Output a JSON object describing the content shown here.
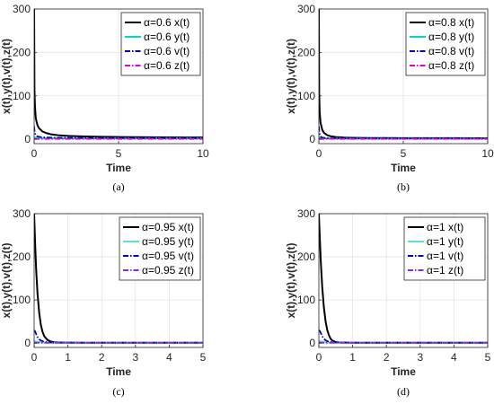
{
  "chart_data": [
    {
      "type": "line",
      "caption": "(a)",
      "xlabel": "Time",
      "ylabel": "x(t),y(t),v(t),z(t)",
      "xlim": [
        0,
        10
      ],
      "ylim": [
        -10,
        300
      ],
      "xticks": [
        0,
        5,
        10
      ],
      "yticks": [
        0,
        100,
        200,
        300
      ],
      "grid": true,
      "legend_position": "top-right",
      "series": [
        {
          "name": "α=0.6 x(t)",
          "color": "#000000",
          "dash": "solid",
          "x": [
            0,
            0.02,
            0.05,
            0.1,
            0.2,
            0.3,
            0.5,
            0.7,
            1,
            1.5,
            2,
            3,
            4,
            5,
            6,
            7,
            8,
            9,
            10
          ],
          "y": [
            300,
            115,
            75,
            48,
            32,
            25,
            18,
            14.5,
            11.5,
            9,
            7.8,
            6.5,
            5.8,
            5.3,
            5,
            4.7,
            4.5,
            4.3,
            4.2
          ]
        },
        {
          "name": "α=0.6 y(t)",
          "color": "#00d5d5",
          "dash": "solid",
          "x": [
            0,
            0.05,
            0.2,
            0.5,
            1,
            2,
            3,
            5,
            7,
            10
          ],
          "y": [
            5,
            4,
            3,
            2.6,
            2.3,
            2.1,
            2,
            2,
            2,
            2
          ]
        },
        {
          "name": "α=0.6 v(t)",
          "color": "#0000c8",
          "dash": "dashdot",
          "x": [
            0,
            0.03,
            0.1,
            0.2,
            0.4,
            0.7,
            1,
            2,
            3,
            5,
            7,
            10
          ],
          "y": [
            30,
            16,
            9,
            6.5,
            5,
            4.2,
            3.8,
            3.3,
            3.1,
            2.9,
            2.8,
            2.7
          ]
        },
        {
          "name": "α=0.6 z(t)",
          "color": "#e000e0",
          "dash": "dashdot",
          "x": [
            0,
            0.1,
            0.5,
            1,
            2,
            5,
            10
          ],
          "y": [
            1,
            0.9,
            0.8,
            0.8,
            0.8,
            0.8,
            0.8
          ]
        }
      ]
    },
    {
      "type": "line",
      "caption": "(b)",
      "xlabel": "Time",
      "ylabel": "x(t),y(t),v(t),z(t)",
      "xlim": [
        0,
        10
      ],
      "ylim": [
        -10,
        300
      ],
      "xticks": [
        0,
        5,
        10
      ],
      "yticks": [
        0,
        100,
        200,
        300
      ],
      "grid": true,
      "legend_position": "top-right",
      "series": [
        {
          "name": "α=0.8 x(t)",
          "color": "#000000",
          "dash": "solid",
          "x": [
            0,
            0.02,
            0.05,
            0.1,
            0.2,
            0.3,
            0.5,
            0.7,
            1,
            1.5,
            2,
            3,
            4,
            5,
            7,
            10
          ],
          "y": [
            300,
            105,
            62,
            38,
            22,
            15,
            9.5,
            7,
            5.3,
            4,
            3.5,
            3,
            2.8,
            2.7,
            2.6,
            2.5
          ]
        },
        {
          "name": "α=0.8 y(t)",
          "color": "#00d5d5",
          "dash": "solid",
          "x": [
            0,
            0.05,
            0.2,
            0.5,
            1,
            2,
            5,
            10
          ],
          "y": [
            5,
            3.5,
            2.5,
            2,
            1.8,
            1.7,
            1.7,
            1.7
          ]
        },
        {
          "name": "α=0.8 v(t)",
          "color": "#0000c8",
          "dash": "dashdot",
          "x": [
            0,
            0.03,
            0.1,
            0.2,
            0.4,
            0.7,
            1,
            2,
            3,
            5,
            10
          ],
          "y": [
            30,
            14,
            6.5,
            4,
            2.8,
            2.3,
            2.1,
            1.9,
            1.8,
            1.8,
            1.8
          ]
        },
        {
          "name": "α=0.8 z(t)",
          "color": "#e000e0",
          "dash": "dashdot",
          "x": [
            0,
            0.1,
            0.5,
            1,
            2,
            5,
            10
          ],
          "y": [
            1,
            0.9,
            0.8,
            0.8,
            0.8,
            0.8,
            0.8
          ]
        }
      ]
    },
    {
      "type": "line",
      "caption": "(c)",
      "xlabel": "Time",
      "ylabel": "x(t),y(t),v(t),z(t)",
      "xlim": [
        0,
        5
      ],
      "ylim": [
        -10,
        300
      ],
      "xticks": [
        0,
        1,
        2,
        3,
        4,
        5
      ],
      "yticks": [
        0,
        100,
        200,
        300
      ],
      "grid": true,
      "legend_position": "top-right",
      "series": [
        {
          "name": "α=0.95 x(t)",
          "color": "#000000",
          "dash": "solid",
          "x": [
            0,
            0.03,
            0.06,
            0.1,
            0.15,
            0.2,
            0.25,
            0.3,
            0.4,
            0.5,
            0.6,
            0.8,
            1,
            1.5,
            2,
            3,
            4,
            5
          ],
          "y": [
            300,
            230,
            170,
            115,
            70,
            42,
            26,
            16,
            7,
            3.5,
            2,
            1.3,
            1.1,
            1,
            1,
            1,
            1,
            1
          ]
        },
        {
          "name": "α=0.95 y(t)",
          "color": "#5fdcdc",
          "dash": "solid",
          "x": [
            0,
            0.05,
            0.15,
            0.3,
            0.5,
            1,
            2,
            3,
            4,
            5
          ],
          "y": [
            5,
            4,
            2.5,
            1.5,
            1,
            0.8,
            0.8,
            0.8,
            0.8,
            0.8
          ]
        },
        {
          "name": "α=0.95 v(t)",
          "color": "#0000c8",
          "dash": "dashdot",
          "x": [
            0,
            0.03,
            0.06,
            0.1,
            0.15,
            0.2,
            0.3,
            0.5,
            1,
            2,
            5
          ],
          "y": [
            30,
            27,
            21,
            14,
            9,
            6,
            3,
            1.5,
            1,
            0.9,
            0.9
          ]
        },
        {
          "name": "α=0.95 z(t)",
          "color": "#8a2be2",
          "dash": "dashdot",
          "x": [
            0,
            0.2,
            0.5,
            1,
            2,
            5
          ],
          "y": [
            1,
            0.8,
            0.6,
            0.6,
            0.6,
            0.6
          ]
        }
      ]
    },
    {
      "type": "line",
      "caption": "(d)",
      "xlabel": "Time",
      "ylabel": "x(t),y(t),v(t),z(t)",
      "xlim": [
        0,
        5
      ],
      "ylim": [
        -10,
        300
      ],
      "xticks": [
        0,
        1,
        2,
        3,
        4,
        5
      ],
      "yticks": [
        0,
        100,
        200,
        300
      ],
      "grid": true,
      "legend_position": "top-right",
      "series": [
        {
          "name": "α=1 x(t)",
          "color": "#000000",
          "dash": "solid",
          "x": [
            0,
            0.03,
            0.06,
            0.1,
            0.15,
            0.2,
            0.25,
            0.3,
            0.35,
            0.4,
            0.5,
            0.6,
            0.8,
            1,
            2,
            3,
            4,
            5
          ],
          "y": [
            300,
            240,
            185,
            130,
            82,
            50,
            30,
            18,
            10,
            6,
            2.5,
            1.5,
            1.1,
            1,
            1,
            1,
            1,
            1
          ]
        },
        {
          "name": "α=1 y(t)",
          "color": "#5fdcdc",
          "dash": "solid",
          "x": [
            0,
            0.05,
            0.15,
            0.3,
            0.5,
            1,
            2,
            5
          ],
          "y": [
            5,
            4.2,
            2.7,
            1.5,
            1,
            0.8,
            0.8,
            0.8
          ]
        },
        {
          "name": "α=1 v(t)",
          "color": "#0000c8",
          "dash": "dashdot",
          "x": [
            0,
            0.03,
            0.06,
            0.1,
            0.15,
            0.2,
            0.3,
            0.5,
            1,
            2,
            5
          ],
          "y": [
            30,
            28,
            23,
            16,
            10,
            6.5,
            3,
            1.5,
            1,
            0.9,
            0.9
          ]
        },
        {
          "name": "α=1 z(t)",
          "color": "#8a2be2",
          "dash": "dashdot",
          "x": [
            0,
            0.2,
            0.5,
            1,
            2,
            5
          ],
          "y": [
            1,
            0.8,
            0.6,
            0.6,
            0.6,
            0.6
          ]
        }
      ]
    }
  ]
}
